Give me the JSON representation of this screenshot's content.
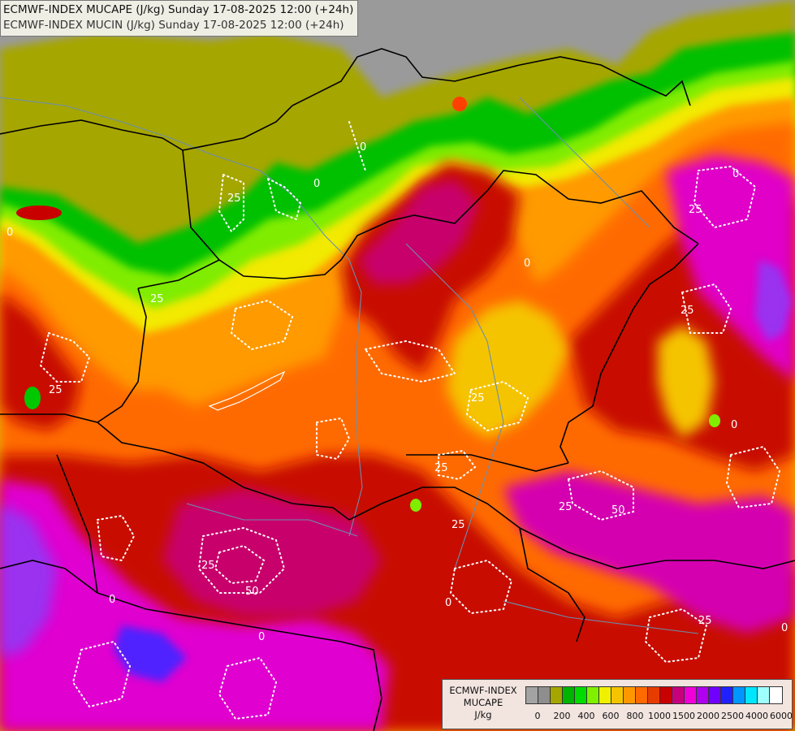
{
  "title": {
    "line1": "ECMWF-INDEX MUCAPE (J/kg) Sunday 17-08-2025 12:00 (+24h)",
    "line2": "ECMWF-INDEX MUCIN (J/kg) Sunday 17-08-2025 12:00 (+24h)"
  },
  "legend": {
    "line1": "ECMWF-INDEX",
    "line2": "MUCAPE",
    "line3": "J/kg",
    "swatches": [
      "#a3a3a3",
      "#8e8e8e",
      "#a6a600",
      "#00b400",
      "#00dc00",
      "#7ff000",
      "#f0f000",
      "#f5c400",
      "#ff9800",
      "#ff6a00",
      "#e63c00",
      "#c80000",
      "#c8007c",
      "#f000d8",
      "#b000f0",
      "#7000ff",
      "#2020ff",
      "#0096ff",
      "#00e6ff",
      "#a0ffff",
      "#ffffff"
    ],
    "ticks": [
      "0",
      "200",
      "400",
      "600",
      "800",
      "1000",
      "1500",
      "2000",
      "2500",
      "4000",
      "6000"
    ]
  },
  "map_labels": {
    "cin_0": "0",
    "cin_25": "25",
    "cin_50": "50"
  },
  "colors": {
    "no_cape_gray": "#9a9a9a",
    "olive": "#a6a600",
    "green": "#00c800",
    "lime": "#7ff000",
    "yellow": "#f0f000",
    "orange": "#ff9800",
    "dark_orange": "#ff6a00",
    "red": "#cc1000",
    "dark_red": "#b40000",
    "crimson": "#c8006a",
    "magenta": "#e000d0",
    "violet": "#9a30f0",
    "border": "#000000",
    "river": "#6a8fb0",
    "cin_contour": "#ffffff"
  }
}
